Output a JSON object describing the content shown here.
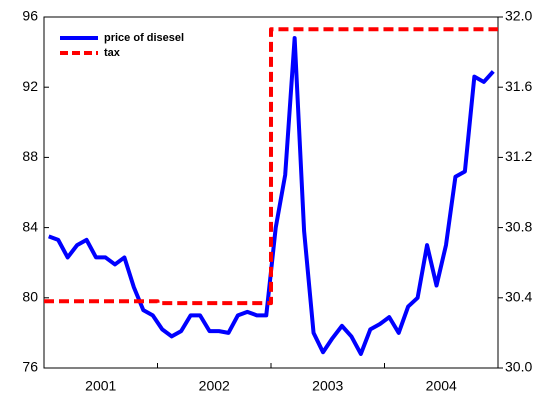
{
  "chart_data": {
    "type": "line",
    "categories": [
      null,
      null,
      null,
      null,
      null,
      "2001",
      null,
      null,
      null,
      null,
      null,
      null,
      null,
      null,
      null,
      null,
      null,
      "2002",
      null,
      null,
      null,
      null,
      null,
      null,
      null,
      null,
      null,
      null,
      null,
      "2003",
      null,
      null,
      null,
      null,
      null,
      null,
      null,
      null,
      null,
      null,
      null,
      "2004",
      null,
      null,
      null,
      null,
      null,
      null
    ],
    "series": [
      {
        "name": "price of disesel",
        "color": "#0000ff",
        "axis": "y",
        "values": [
          83.5,
          83.3,
          82.3,
          83.0,
          83.3,
          82.3,
          82.3,
          81.9,
          82.3,
          80.6,
          79.3,
          79.0,
          78.2,
          77.8,
          78.1,
          79.0,
          79.0,
          78.1,
          78.1,
          78.0,
          79.0,
          79.2,
          79.0,
          79.0,
          84.0,
          87.0,
          94.8,
          83.8,
          78.0,
          76.9,
          77.7,
          78.4,
          77.8,
          76.8,
          78.2,
          78.5,
          78.9,
          78.0,
          79.5,
          80.0,
          83.0,
          80.7,
          83.0,
          86.9,
          87.2,
          92.6,
          92.3,
          92.9
        ]
      },
      {
        "name": "tax",
        "color": "#ff0000",
        "axis": "y2",
        "values": [
          30.38,
          30.38,
          30.38,
          30.38,
          30.38,
          30.38,
          30.38,
          30.38,
          30.38,
          30.38,
          30.38,
          30.38,
          30.37,
          30.37,
          30.37,
          30.37,
          30.37,
          30.37,
          30.37,
          30.37,
          30.37,
          30.37,
          30.37,
          30.37,
          31.93,
          31.93,
          31.93,
          31.93,
          31.93,
          31.93,
          31.93,
          31.93,
          31.93,
          31.93,
          31.93,
          31.93,
          31.93,
          31.93,
          31.93,
          31.93,
          31.93,
          31.93,
          31.93,
          31.93,
          31.93,
          31.93,
          31.93,
          31.93
        ]
      }
    ],
    "ylim": [
      76,
      96
    ],
    "yticks": [
      76,
      80,
      84,
      88,
      92,
      96
    ],
    "y2lim": [
      30.0,
      32.0
    ],
    "y2ticks": [
      {
        "value": 30.0,
        "label": "30.0"
      },
      30.4,
      30.8,
      31.2,
      31.6,
      {
        "value": 32.0,
        "label": "32.0"
      }
    ],
    "legend": "upper left",
    "grid": false
  }
}
